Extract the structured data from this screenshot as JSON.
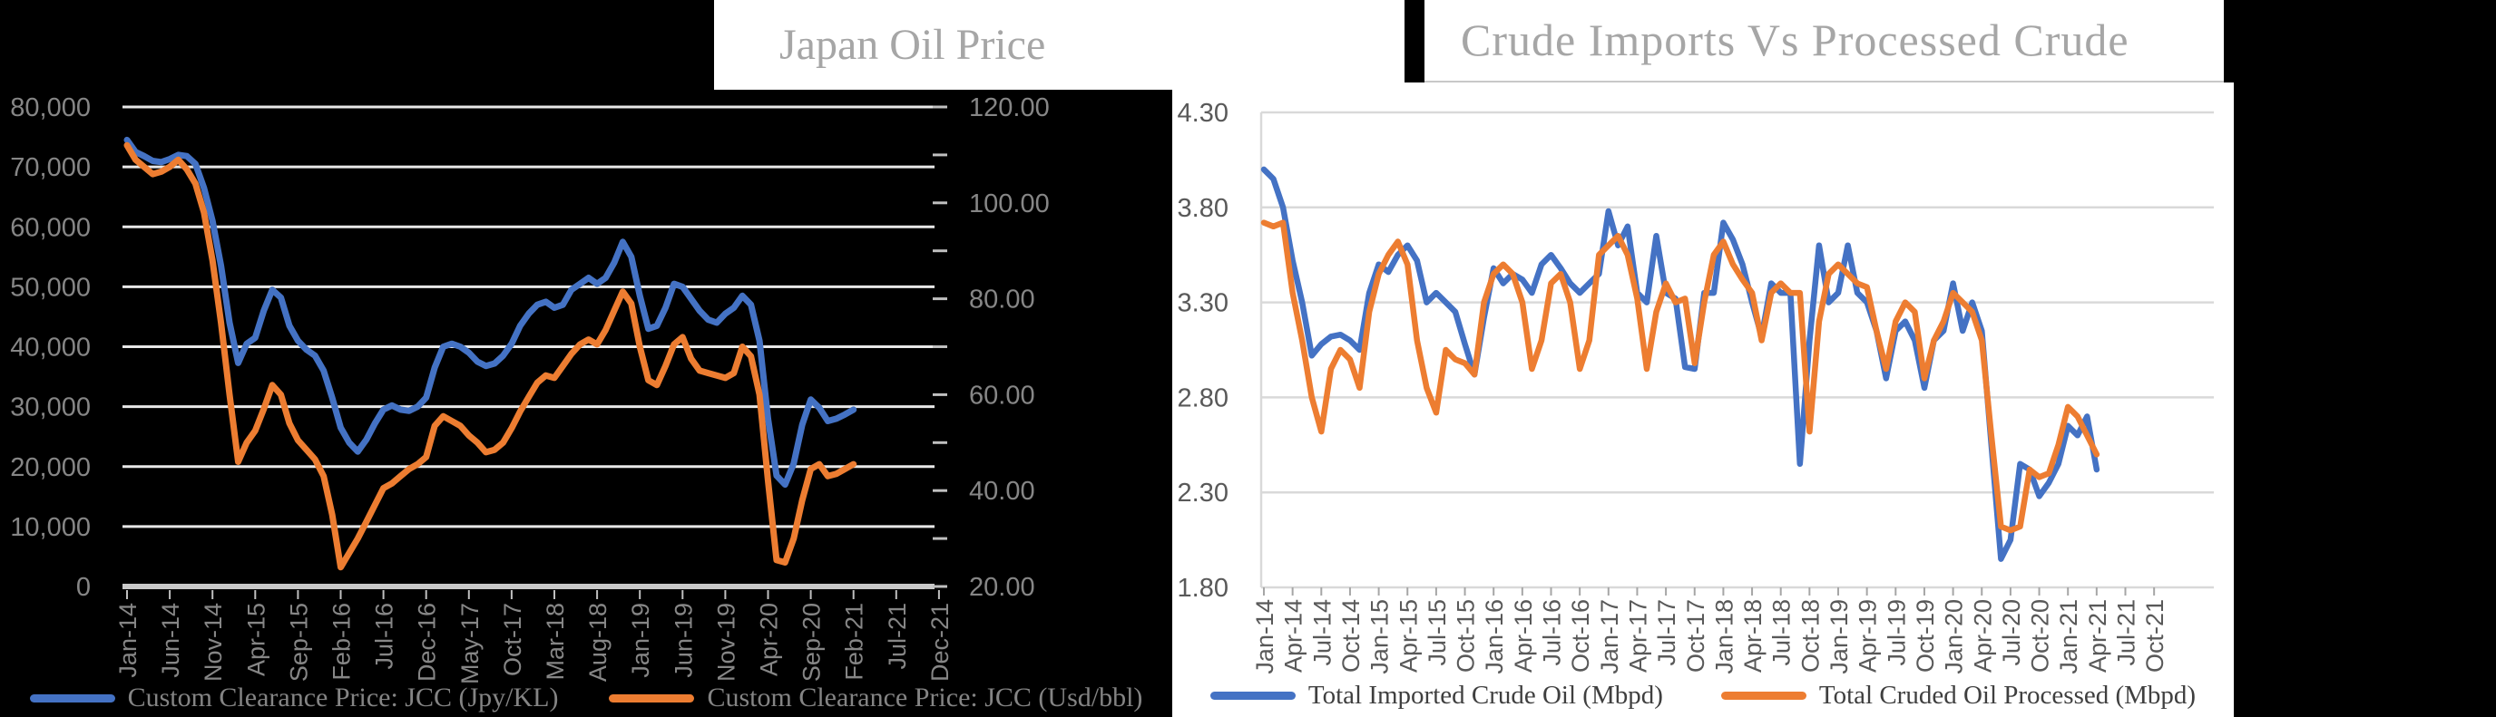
{
  "slide": {
    "background_color": "#000000",
    "title1": "Japan Oil Price",
    "title2": "Crude Imports Vs Processed Crude",
    "title_color": "#a6a6a6",
    "accent_blue": "#4472C4",
    "accent_orange": "#ED7D31"
  },
  "chart_data": [
    {
      "id": "japan_oil_price",
      "type": "line",
      "title": "Japan Oil Price",
      "x_start": "Jan-14",
      "x_interval": "monthly",
      "x_tick_labels": [
        "Jan-14",
        "Jun-14",
        "Nov-14",
        "Apr-15",
        "Sep-15",
        "Feb-16",
        "Jul-16",
        "Dec-16",
        "May-17",
        "Oct-17",
        "Mar-18",
        "Aug-18",
        "Jan-19",
        "Jun-19",
        "Nov-19",
        "Apr-20",
        "Sep-20",
        "Feb-21",
        "Jul-21",
        "Dec-21"
      ],
      "x_tick_step_months": 5,
      "y_left": {
        "tick_labels": [
          "80,000",
          "70,000",
          "60,000",
          "50,000",
          "40,000",
          "30,000",
          "20,000",
          "10,000",
          "0"
        ],
        "min": 0,
        "max": 80000
      },
      "y_right": {
        "tick_labels": [
          "120.00",
          "100.00",
          "80.00",
          "60.00",
          "40.00",
          "20.00"
        ],
        "min": 20,
        "max": 120
      },
      "grid": "horizontal",
      "legend_position": "bottom",
      "series": [
        {
          "name": "Custom Clearance Price: JCC (Jpy/KL)",
          "axis": "left",
          "color": "#4472C4",
          "values": [
            74500,
            72500,
            71800,
            71000,
            70800,
            71300,
            72000,
            71800,
            70500,
            66500,
            61000,
            53500,
            44000,
            37300,
            40500,
            41500,
            46000,
            49500,
            48200,
            43500,
            41000,
            39500,
            38500,
            36000,
            31500,
            26500,
            24000,
            22500,
            24500,
            27200,
            29500,
            30200,
            29500,
            29300,
            30000,
            31500,
            36500,
            40000,
            40500,
            40000,
            39000,
            37500,
            36800,
            37200,
            38500,
            40500,
            43500,
            45500,
            47000,
            47500,
            46500,
            47000,
            49500,
            50500,
            51500,
            50500,
            51500,
            54000,
            57500,
            55000,
            48500,
            43000,
            43500,
            46500,
            50500,
            50000,
            48000,
            46000,
            44500,
            44000,
            45500,
            46500,
            48500,
            47000,
            41000,
            28000,
            18500,
            17000,
            20500,
            27000,
            31200,
            29800,
            27600,
            28000,
            28700,
            29500
          ]
        },
        {
          "name": "Custom Clearance Price: JCC (Usd/bbl)",
          "axis": "right",
          "color": "#ED7D31",
          "values": [
            112,
            109,
            107.5,
            106,
            106.5,
            107.5,
            109,
            107,
            104,
            98,
            88,
            75,
            60,
            46,
            50,
            52.5,
            57,
            62,
            60,
            54,
            50.5,
            48.5,
            46.5,
            43,
            35,
            24,
            27,
            30,
            33.5,
            37,
            40.5,
            41.5,
            43,
            44.5,
            45.5,
            47,
            53.5,
            55.5,
            54.5,
            53.5,
            51.5,
            50,
            48,
            48.5,
            50,
            53,
            56.5,
            59.5,
            62.5,
            64,
            63.5,
            66,
            68.5,
            70.5,
            71.5,
            70.5,
            73.5,
            77.5,
            81.5,
            79,
            70,
            63,
            62,
            66,
            70.5,
            72,
            67.5,
            65,
            64.5,
            64,
            63.5,
            64.5,
            70,
            68,
            60,
            42,
            25.5,
            25,
            30,
            38,
            44.5,
            45.5,
            43,
            43.5,
            44.5,
            45.5
          ]
        }
      ]
    },
    {
      "id": "crude_imports_vs_processed",
      "type": "line",
      "title": "Crude Imports Vs Processed Crude",
      "x_start": "Jan-14",
      "x_interval": "monthly",
      "x_tick_labels": [
        "Jan-14",
        "Apr-14",
        "Jul-14",
        "Oct-14",
        "Jan-15",
        "Apr-15",
        "Jul-15",
        "Oct-15",
        "Jan-16",
        "Apr-16",
        "Jul-16",
        "Oct-16",
        "Jan-17",
        "Apr-17",
        "Jul-17",
        "Oct-17",
        "Jan-18",
        "Apr-18",
        "Jul-18",
        "Oct-18",
        "Jan-19",
        "Apr-19",
        "Jul-19",
        "Oct-19",
        "Jan-20",
        "Apr-20",
        "Jul-20",
        "Oct-20",
        "Jan-21",
        "Apr-21",
        "Jul-21",
        "Oct-21"
      ],
      "x_tick_step_months": 3,
      "y_left": {
        "tick_labels": [
          "4.30",
          "3.80",
          "3.30",
          "2.80",
          "2.30",
          "1.80"
        ],
        "min": 1.8,
        "max": 4.3
      },
      "grid": "horizontal",
      "legend_position": "bottom",
      "series": [
        {
          "name": "Total Imported Crude Oil (Mbpd)",
          "axis": "left",
          "color": "#4472C4",
          "values": [
            4.0,
            3.95,
            3.8,
            3.52,
            3.3,
            3.02,
            3.08,
            3.12,
            3.13,
            3.1,
            3.05,
            3.35,
            3.5,
            3.46,
            3.55,
            3.6,
            3.52,
            3.3,
            3.35,
            3.3,
            3.25,
            3.08,
            2.92,
            3.22,
            3.48,
            3.4,
            3.45,
            3.42,
            3.35,
            3.5,
            3.55,
            3.48,
            3.4,
            3.35,
            3.4,
            3.45,
            3.78,
            3.6,
            3.7,
            3.35,
            3.3,
            3.65,
            3.35,
            3.32,
            2.96,
            2.95,
            3.35,
            3.35,
            3.72,
            3.63,
            3.5,
            3.3,
            3.12,
            3.4,
            3.35,
            3.35,
            2.45,
            3.1,
            3.6,
            3.3,
            3.35,
            3.6,
            3.35,
            3.3,
            3.15,
            2.9,
            3.15,
            3.2,
            3.1,
            2.85,
            3.1,
            3.15,
            3.4,
            3.15,
            3.3,
            3.15,
            2.55,
            1.95,
            2.05,
            2.45,
            2.42,
            2.28,
            2.35,
            2.45,
            2.65,
            2.6,
            2.7,
            2.42
          ]
        },
        {
          "name": "Total Cruded Oil Processed (Mbpd)",
          "axis": "left",
          "color": "#ED7D31",
          "values": [
            3.72,
            3.7,
            3.72,
            3.35,
            3.1,
            2.8,
            2.62,
            2.95,
            3.05,
            3.0,
            2.85,
            3.25,
            3.45,
            3.55,
            3.62,
            3.5,
            3.1,
            2.85,
            2.72,
            3.05,
            3.0,
            2.98,
            2.92,
            3.3,
            3.45,
            3.5,
            3.45,
            3.3,
            2.95,
            3.1,
            3.4,
            3.45,
            3.3,
            2.95,
            3.1,
            3.55,
            3.6,
            3.65,
            3.55,
            3.32,
            2.95,
            3.25,
            3.4,
            3.3,
            3.32,
            2.98,
            3.3,
            3.55,
            3.62,
            3.5,
            3.42,
            3.35,
            3.1,
            3.35,
            3.4,
            3.35,
            3.35,
            2.62,
            3.2,
            3.45,
            3.5,
            3.45,
            3.4,
            3.38,
            3.15,
            2.95,
            3.2,
            3.3,
            3.25,
            2.9,
            3.1,
            3.2,
            3.35,
            3.3,
            3.25,
            3.1,
            2.6,
            2.12,
            2.1,
            2.12,
            2.42,
            2.38,
            2.4,
            2.55,
            2.75,
            2.7,
            2.6,
            2.5
          ]
        }
      ]
    }
  ],
  "chart1_style": {
    "bg": "#000000",
    "gridline": "#e8e8e8",
    "axis_band": "#c9c9c9",
    "tick": "#bfbfbf",
    "label_color": "#868686",
    "legend_text_color": "#848484"
  },
  "chart2_style": {
    "bg": "#ffffff",
    "gridline": "#d9d9d9",
    "tick": "#a6a6a6",
    "label_color": "#595959",
    "legend_text_color": "#3f3f3f"
  }
}
